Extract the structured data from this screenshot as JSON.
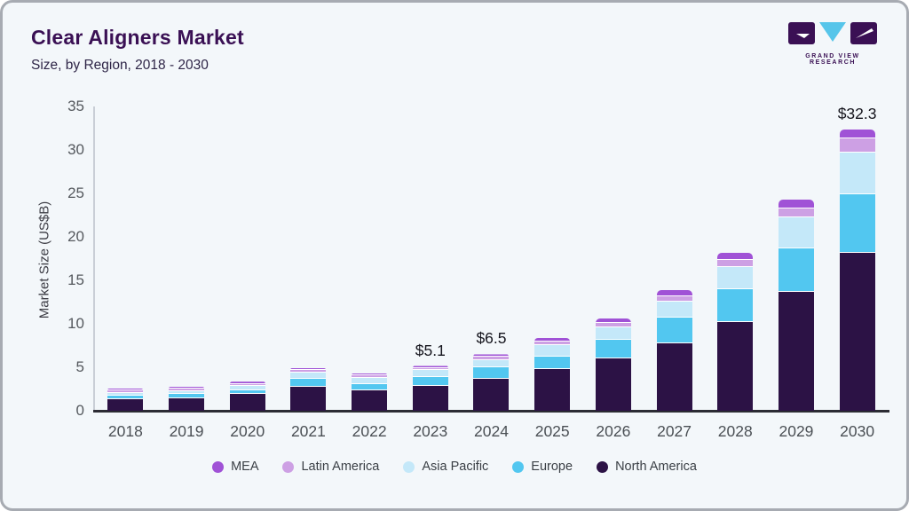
{
  "header": {
    "title": "Clear Aligners Market",
    "subtitle": "Size, by Region, 2018 - 2030"
  },
  "logo": {
    "text": "GRAND VIEW RESEARCH",
    "dark_color": "#3a1054",
    "accent_color": "#56c5ea"
  },
  "colors": {
    "card_background": "#f3f7fa",
    "frame_border": "#a7abb2",
    "title_text": "#3a1054",
    "axis_text": "#4b5055",
    "baseline": "#2c2c34",
    "y_axis_line": "#c9ced6"
  },
  "chart_data": {
    "type": "bar",
    "stacked": true,
    "title": "Clear Aligners Market Size, by Region, 2018 - 2030",
    "xlabel": "",
    "ylabel": "Market Size (US$B)",
    "ylim": [
      0,
      35
    ],
    "yticks": [
      0,
      5,
      10,
      15,
      20,
      25,
      30,
      35
    ],
    "grid": false,
    "legend_position": "bottom",
    "categories": [
      2018,
      2019,
      2020,
      2021,
      2022,
      2023,
      2024,
      2025,
      2026,
      2027,
      2028,
      2029,
      2030
    ],
    "series": [
      {
        "name": "North America",
        "color": "#2c1245",
        "values": [
          1.3,
          1.45,
          1.9,
          2.8,
          2.3,
          2.9,
          3.7,
          4.75,
          6.0,
          7.8,
          10.2,
          13.7,
          18.2
        ]
      },
      {
        "name": "Europe",
        "color": "#52c7f0",
        "values": [
          0.45,
          0.5,
          0.5,
          0.9,
          0.75,
          1.0,
          1.35,
          1.5,
          2.2,
          2.9,
          3.8,
          5.0,
          6.7
        ]
      },
      {
        "name": "Asia Pacific",
        "color": "#c4e8f9",
        "values": [
          0.3,
          0.3,
          0.45,
          0.7,
          0.75,
          0.75,
          0.8,
          1.3,
          1.4,
          1.85,
          2.55,
          3.5,
          4.8
        ]
      },
      {
        "name": "Latin America",
        "color": "#cda0e4",
        "values": [
          0.08,
          0.1,
          0.12,
          0.25,
          0.2,
          0.25,
          0.35,
          0.4,
          0.5,
          0.6,
          0.85,
          1.1,
          1.6
        ]
      },
      {
        "name": "MEA",
        "color": "#a052d6",
        "values": [
          0.05,
          0.05,
          0.06,
          0.15,
          0.15,
          0.2,
          0.3,
          0.45,
          0.55,
          0.7,
          0.75,
          0.95,
          1.0
        ]
      }
    ],
    "totals": [
      2.18,
      2.4,
      3.03,
      4.8,
      4.15,
      5.1,
      6.5,
      8.4,
      10.65,
      13.85,
      18.15,
      24.25,
      32.3
    ],
    "annotations": [
      {
        "category": 2023,
        "text": "$5.1"
      },
      {
        "category": 2024,
        "text": "$6.5"
      },
      {
        "category": 2030,
        "text": "$32.3"
      }
    ],
    "legend_order": [
      "MEA",
      "Latin America",
      "Asia Pacific",
      "Europe",
      "North America"
    ]
  }
}
